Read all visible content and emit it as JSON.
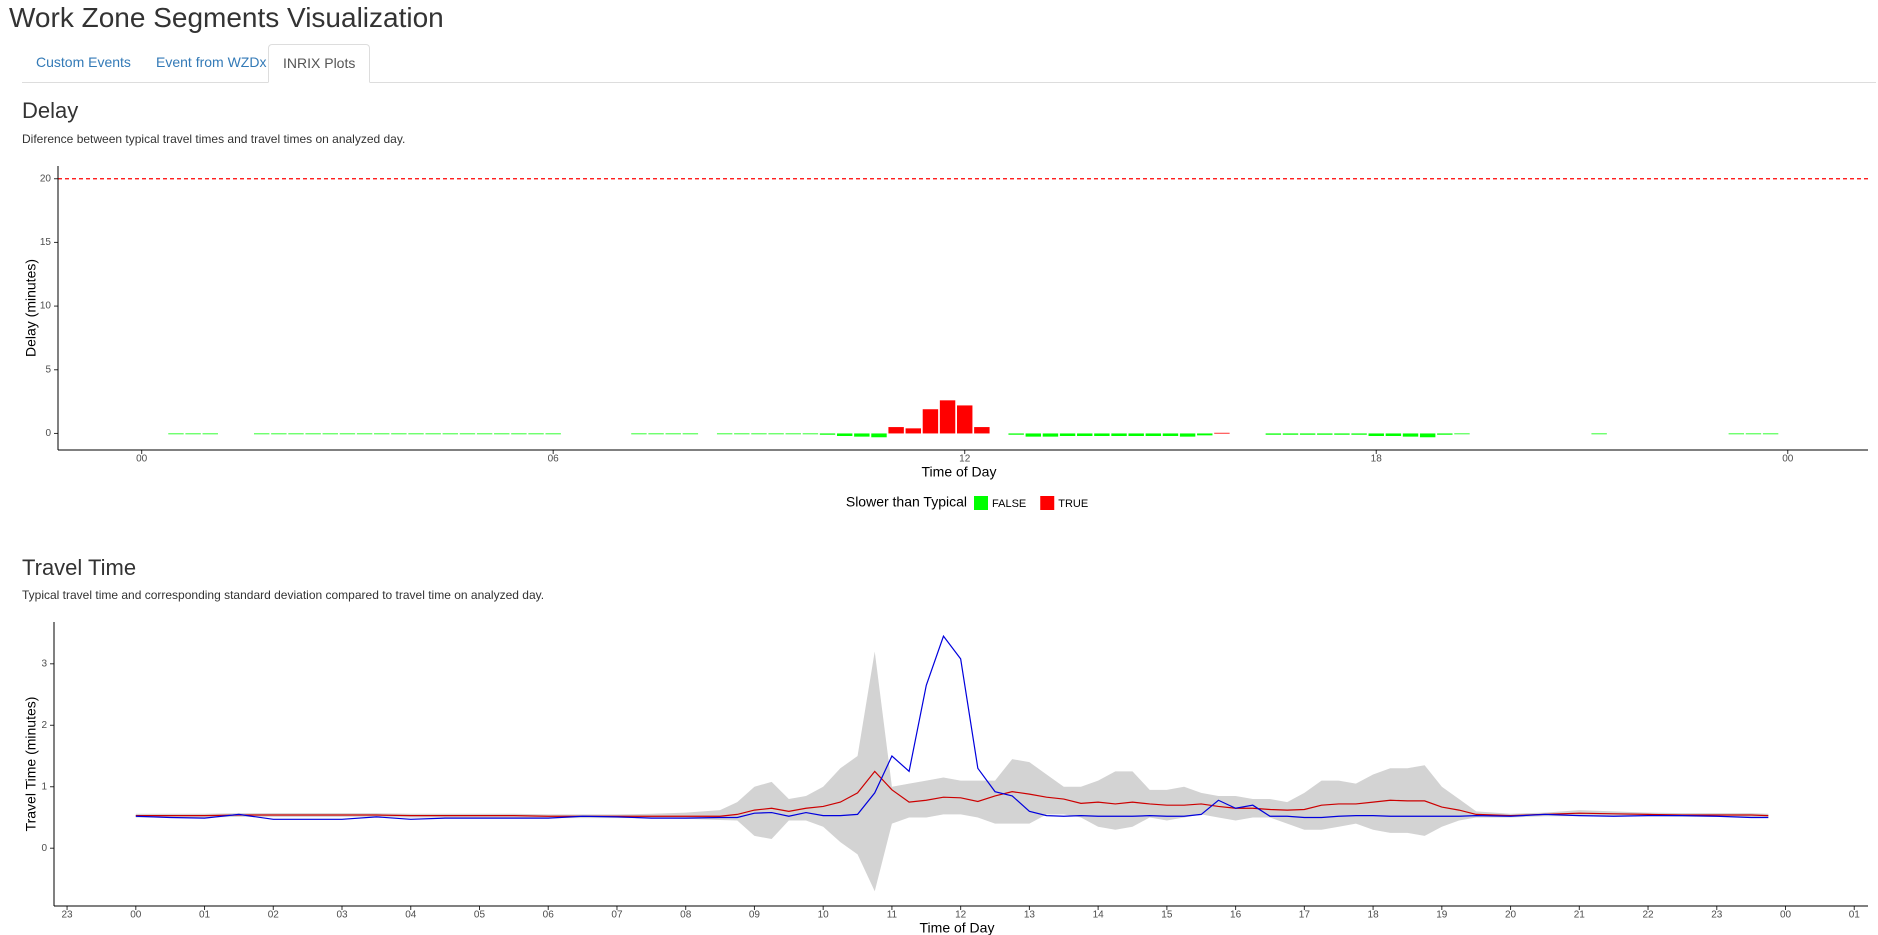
{
  "header": {
    "title": "Work Zone Segments Visualization"
  },
  "tabs": {
    "items": [
      "Custom Events",
      "Event from WZDx",
      "INRIX Plots"
    ],
    "active": 2
  },
  "chart_data": [
    {
      "type": "bar",
      "title": "Delay",
      "subtitle": "Diference between typical travel times and travel times on analyzed day.",
      "x_label": "Time of Day",
      "y_label": "Delay (minutes)",
      "xlim": [
        -1.22,
        25.17
      ],
      "xticks": [
        {
          "value": 0,
          "label": "00"
        },
        {
          "value": 6,
          "label": "06"
        },
        12,
        18,
        {
          "value": 24,
          "label": "00"
        }
      ],
      "ylim": [
        -1.3,
        21
      ],
      "yticks": [
        0,
        5,
        10,
        15,
        20
      ],
      "reference_line": {
        "value": 20,
        "color": "#ff0000"
      },
      "legend_title": "Slower than Typical",
      "legend": "bottom",
      "series": [
        {
          "name": "FALSE",
          "color": "#00ff00",
          "x": [
            0.5,
            0.75,
            1.0,
            1.75,
            2.0,
            2.25,
            2.5,
            2.75,
            3.0,
            3.25,
            3.5,
            3.75,
            4.0,
            4.25,
            4.5,
            4.75,
            5.0,
            5.25,
            5.5,
            5.75,
            6.0,
            7.25,
            7.5,
            7.75,
            8.0,
            8.5,
            8.75,
            9.0,
            9.25,
            9.5,
            9.75,
            10.0,
            10.25,
            10.5,
            10.75,
            12.75,
            13.0,
            13.25,
            13.5,
            13.75,
            14.0,
            14.25,
            14.5,
            14.75,
            15.0,
            15.25,
            15.5,
            16.5,
            16.75,
            17.0,
            17.25,
            17.5,
            17.75,
            18.0,
            18.25,
            18.5,
            18.75,
            19.0,
            19.25,
            21.25,
            23.25,
            23.5,
            23.75
          ],
          "values": [
            -0.05,
            -0.05,
            -0.05,
            -0.05,
            -0.05,
            -0.05,
            -0.05,
            -0.05,
            -0.05,
            -0.05,
            -0.05,
            -0.05,
            -0.05,
            -0.05,
            -0.05,
            -0.05,
            -0.05,
            -0.05,
            -0.05,
            -0.05,
            -0.05,
            -0.05,
            -0.05,
            -0.05,
            -0.05,
            -0.05,
            -0.05,
            -0.05,
            -0.05,
            -0.05,
            -0.05,
            -0.1,
            -0.2,
            -0.25,
            -0.3,
            -0.1,
            -0.25,
            -0.25,
            -0.2,
            -0.2,
            -0.2,
            -0.2,
            -0.2,
            -0.2,
            -0.2,
            -0.25,
            -0.15,
            -0.1,
            -0.1,
            -0.1,
            -0.1,
            -0.1,
            -0.1,
            -0.2,
            -0.2,
            -0.25,
            -0.3,
            -0.1,
            -0.05,
            -0.05,
            -0.05,
            -0.05,
            -0.05
          ]
        },
        {
          "name": "TRUE",
          "color": "#ff0000",
          "x": [
            11.0,
            11.25,
            11.5,
            11.75,
            12.0,
            12.25,
            15.75
          ],
          "values": [
            0.5,
            0.4,
            1.9,
            2.6,
            2.2,
            0.5,
            0.05
          ]
        }
      ]
    },
    {
      "type": "line",
      "title": "Travel Time",
      "subtitle": "Typical travel time and corresponding standard deviation compared to travel time on analyzed day.",
      "x_label": "Time of Day",
      "y_label": "Travel Time (minutes)",
      "xlim": [
        -1.19,
        25.2
      ],
      "xticks": [
        {
          "value": -1,
          "label": "23"
        },
        {
          "value": 0,
          "label": "00"
        },
        {
          "value": 1,
          "label": "01"
        },
        {
          "value": 2,
          "label": "02"
        },
        {
          "value": 3,
          "label": "03"
        },
        {
          "value": 4,
          "label": "04"
        },
        {
          "value": 5,
          "label": "05"
        },
        {
          "value": 6,
          "label": "06"
        },
        {
          "value": 7,
          "label": "07"
        },
        {
          "value": 8,
          "label": "08"
        },
        {
          "value": 9,
          "label": "09"
        },
        10,
        11,
        12,
        13,
        14,
        15,
        16,
        17,
        18,
        19,
        20,
        21,
        22,
        23,
        {
          "value": 24,
          "label": "00"
        },
        {
          "value": 25,
          "label": "01"
        }
      ],
      "ylim": [
        -0.94,
        3.68
      ],
      "yticks": [
        0,
        1,
        2,
        3
      ],
      "x": [
        0,
        0.5,
        1.0,
        1.5,
        2.0,
        2.5,
        3.0,
        3.5,
        4.0,
        4.5,
        5.0,
        5.5,
        6.0,
        6.5,
        7.0,
        7.5,
        8.0,
        8.5,
        8.75,
        9.0,
        9.25,
        9.5,
        9.75,
        10.0,
        10.25,
        10.5,
        10.75,
        11.0,
        11.25,
        11.5,
        11.75,
        12.0,
        12.25,
        12.5,
        12.75,
        13.0,
        13.25,
        13.5,
        13.75,
        14.0,
        14.25,
        14.5,
        14.75,
        15.0,
        15.25,
        15.5,
        15.75,
        16.0,
        16.25,
        16.5,
        16.75,
        17.0,
        17.25,
        17.5,
        17.75,
        18.0,
        18.25,
        18.5,
        18.75,
        19.0,
        19.25,
        19.5,
        20.0,
        20.5,
        21.0,
        21.5,
        22.0,
        22.5,
        23.0,
        23.5,
        23.75
      ],
      "band": {
        "color": "#d3d3d3",
        "lower": [
          0.5,
          0.5,
          0.5,
          0.51,
          0.51,
          0.51,
          0.51,
          0.51,
          0.5,
          0.5,
          0.5,
          0.5,
          0.49,
          0.49,
          0.49,
          0.49,
          0.48,
          0.46,
          0.45,
          0.2,
          0.15,
          0.45,
          0.45,
          0.35,
          0.1,
          -0.1,
          -0.7,
          0.4,
          0.5,
          0.5,
          0.55,
          0.55,
          0.5,
          0.4,
          0.4,
          0.4,
          0.55,
          0.55,
          0.5,
          0.35,
          0.3,
          0.35,
          0.5,
          0.45,
          0.5,
          0.55,
          0.5,
          0.45,
          0.5,
          0.5,
          0.4,
          0.3,
          0.3,
          0.35,
          0.4,
          0.3,
          0.25,
          0.25,
          0.2,
          0.35,
          0.45,
          0.5,
          0.5,
          0.52,
          0.52,
          0.52,
          0.52,
          0.51,
          0.51,
          0.51,
          0.5
        ],
        "upper": [
          0.56,
          0.56,
          0.56,
          0.57,
          0.57,
          0.57,
          0.57,
          0.57,
          0.56,
          0.56,
          0.56,
          0.56,
          0.55,
          0.55,
          0.55,
          0.56,
          0.58,
          0.62,
          0.75,
          1.0,
          1.08,
          0.8,
          0.85,
          1.0,
          1.3,
          1.5,
          3.2,
          1.0,
          1.05,
          1.1,
          1.15,
          1.1,
          1.1,
          1.1,
          1.45,
          1.4,
          1.2,
          1.0,
          1.0,
          1.1,
          1.25,
          1.25,
          0.95,
          0.95,
          1.0,
          0.9,
          0.85,
          0.85,
          0.8,
          0.8,
          0.75,
          0.9,
          1.1,
          1.1,
          1.05,
          1.2,
          1.3,
          1.3,
          1.35,
          1.0,
          0.8,
          0.6,
          0.56,
          0.58,
          0.62,
          0.6,
          0.58,
          0.57,
          0.57,
          0.57,
          0.56
        ]
      },
      "series": [
        {
          "color": "#cc0000",
          "values": [
            0.53,
            0.53,
            0.53,
            0.54,
            0.54,
            0.54,
            0.54,
            0.54,
            0.53,
            0.53,
            0.53,
            0.53,
            0.52,
            0.52,
            0.52,
            0.52,
            0.52,
            0.52,
            0.55,
            0.62,
            0.65,
            0.6,
            0.65,
            0.68,
            0.75,
            0.9,
            1.25,
            0.95,
            0.75,
            0.78,
            0.83,
            0.82,
            0.76,
            0.85,
            0.92,
            0.88,
            0.83,
            0.8,
            0.73,
            0.75,
            0.72,
            0.75,
            0.72,
            0.7,
            0.7,
            0.72,
            0.68,
            0.65,
            0.65,
            0.63,
            0.62,
            0.63,
            0.7,
            0.72,
            0.72,
            0.75,
            0.78,
            0.77,
            0.77,
            0.67,
            0.62,
            0.55,
            0.53,
            0.55,
            0.57,
            0.56,
            0.55,
            0.54,
            0.54,
            0.54,
            0.53
          ]
        },
        {
          "color": "#0000dd",
          "values": [
            0.52,
            0.5,
            0.49,
            0.55,
            0.47,
            0.47,
            0.47,
            0.51,
            0.47,
            0.49,
            0.49,
            0.49,
            0.49,
            0.52,
            0.51,
            0.49,
            0.49,
            0.5,
            0.5,
            0.57,
            0.58,
            0.52,
            0.58,
            0.53,
            0.53,
            0.55,
            0.9,
            1.5,
            1.25,
            2.65,
            3.45,
            3.08,
            1.3,
            0.92,
            0.85,
            0.6,
            0.53,
            0.52,
            0.53,
            0.52,
            0.52,
            0.52,
            0.53,
            0.52,
            0.52,
            0.55,
            0.78,
            0.65,
            0.7,
            0.52,
            0.52,
            0.5,
            0.5,
            0.52,
            0.53,
            0.53,
            0.52,
            0.52,
            0.52,
            0.52,
            0.52,
            0.53,
            0.52,
            0.55,
            0.53,
            0.52,
            0.53,
            0.53,
            0.52,
            0.5,
            0.5
          ]
        }
      ]
    }
  ]
}
